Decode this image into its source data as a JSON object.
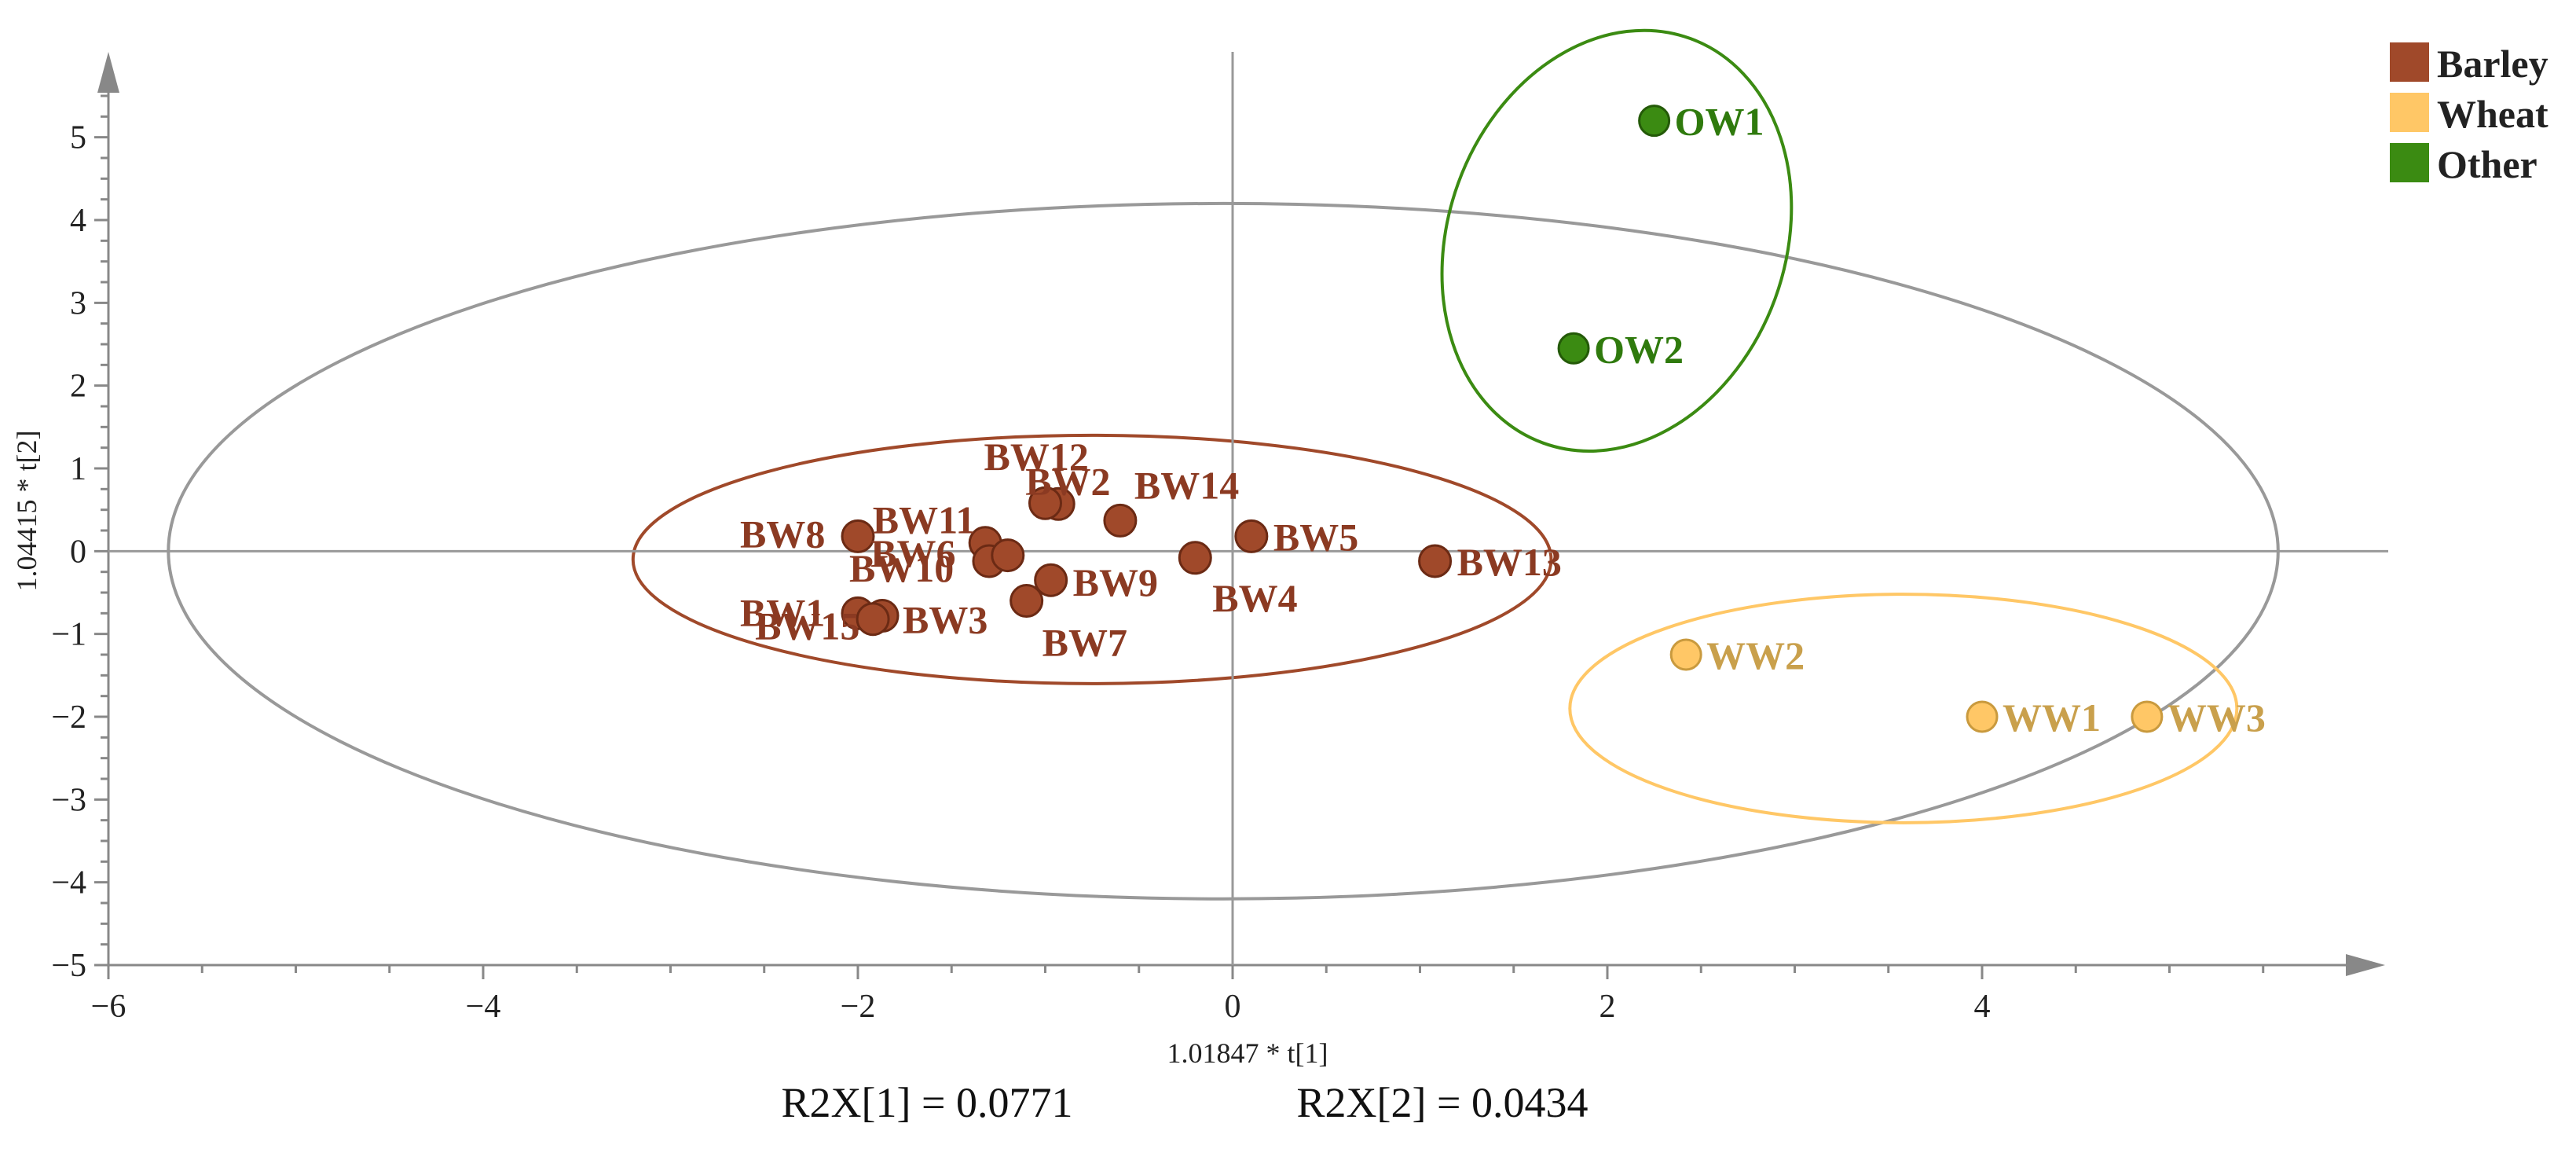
{
  "chart_data": {
    "type": "scatter",
    "xlabel": "1.01847 * t[1]",
    "ylabel": "1.04415 * t[2]",
    "xlim": [
      -6,
      6
    ],
    "ylim": [
      -5,
      5.5
    ],
    "x_ticks": [
      -6,
      -4,
      -2,
      0,
      2,
      4
    ],
    "y_ticks": [
      -5,
      -4,
      -3,
      -2,
      -1,
      0,
      1,
      2,
      3,
      4,
      5
    ],
    "x_tick_labels": [
      "−6",
      "−4",
      "−2",
      "0",
      "2",
      "4"
    ],
    "y_tick_labels": [
      "−5",
      "−4",
      "−3",
      "−2",
      "−1",
      "0",
      "1",
      "2",
      "3",
      "4",
      "5"
    ],
    "legend_position": "top-right",
    "series": [
      {
        "name": "Barley",
        "color": "#A0492A",
        "label_color": "#8B3A22",
        "points": [
          {
            "label": "BW2",
            "x": -0.93,
            "y": 0.57
          },
          {
            "label": "BW3",
            "x": -1.87,
            "y": -0.78
          },
          {
            "label": "BW4",
            "x": -0.2,
            "y": -0.08
          },
          {
            "label": "BW5",
            "x": 0.1,
            "y": 0.18
          },
          {
            "label": "BW6",
            "x": -1.32,
            "y": 0.1
          },
          {
            "label": "BW7",
            "x": -1.1,
            "y": -0.6
          },
          {
            "label": "BW8",
            "x": -2.0,
            "y": 0.18
          },
          {
            "label": "BW9",
            "x": -0.97,
            "y": -0.35
          },
          {
            "label": "BW10",
            "x": -1.3,
            "y": -0.12
          },
          {
            "label": "BW11",
            "x": -1.2,
            "y": -0.05
          },
          {
            "label": "BW12",
            "x": -1.0,
            "y": 0.58
          },
          {
            "label": "BW13",
            "x": 1.08,
            "y": -0.12
          },
          {
            "label": "BW14",
            "x": -0.6,
            "y": 0.37
          },
          {
            "label": "BW1",
            "x": -2.0,
            "y": -0.75
          },
          {
            "label": "BW15",
            "x": -1.92,
            "y": -0.82
          }
        ]
      },
      {
        "name": "Wheat",
        "color": "#FFC766",
        "label_color": "#C9A04C",
        "points": [
          {
            "label": "WW1",
            "x": 4.0,
            "y": -2.0
          },
          {
            "label": "WW2",
            "x": 2.42,
            "y": -1.25
          },
          {
            "label": "WW3",
            "x": 4.88,
            "y": -2.0
          }
        ]
      },
      {
        "name": "Other",
        "color": "#3B8B12",
        "label_color": "#2F7A0D",
        "points": [
          {
            "label": "OW1",
            "x": 2.25,
            "y": 5.2
          },
          {
            "label": "OW2",
            "x": 1.82,
            "y": 2.45
          }
        ]
      }
    ],
    "ellipses": [
      {
        "group": "Hotelling T2",
        "color": "#999999",
        "cx": -0.05,
        "cy": 0.0,
        "rx": 5.63,
        "ry": 4.2,
        "angle": 0
      },
      {
        "group": "Barley",
        "color": "#A0492A",
        "cx": -0.75,
        "cy": -0.1,
        "rx": 2.45,
        "ry": 1.5,
        "angle": 0
      },
      {
        "group": "Wheat",
        "color": "#FFC766",
        "cx": 3.58,
        "cy": -1.9,
        "rx": 1.78,
        "ry": 1.38,
        "angle": 0
      },
      {
        "group": "Other",
        "color": "#3B8B12",
        "cx": 2.05,
        "cy": 3.75,
        "rx": 0.9,
        "ry": 2.6,
        "angle": 20
      }
    ],
    "annotations": [
      "R2X[1] = 0.0771",
      "R2X[2] = 0.0434"
    ]
  }
}
